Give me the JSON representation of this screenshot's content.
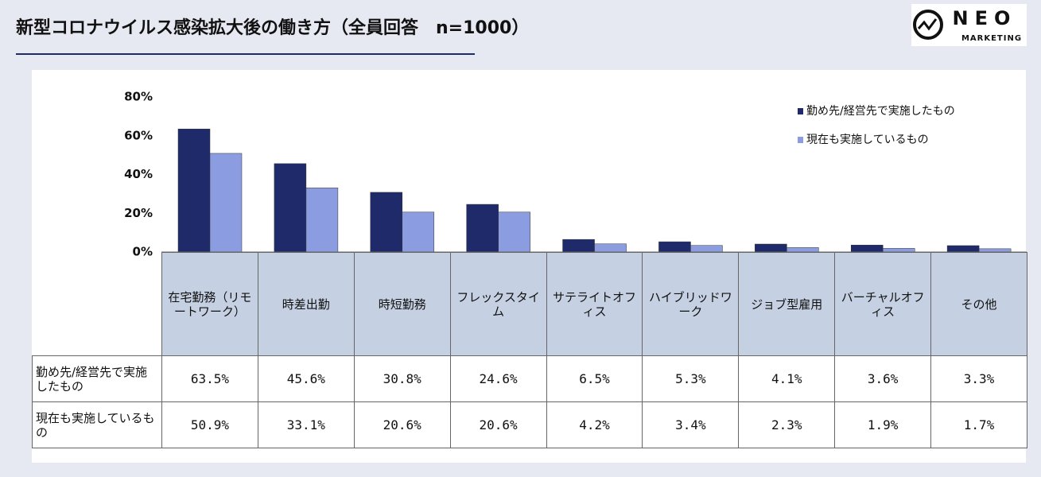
{
  "page_title": "新型コロナウイルス感染拡大後の働き方（全員回答　n=1000）",
  "logo": {
    "name": "NEO",
    "tagline": "MARKETING"
  },
  "chart_data": {
    "type": "bar",
    "categories": [
      "在宅勤務（リモートワーク）",
      "時差出勤",
      "時短勤務",
      "フレックスタイム",
      "サテライトオフィス",
      "ハイブリッドワーク",
      "ジョブ型雇用",
      "バーチャルオフィス",
      "その他"
    ],
    "series": [
      {
        "name": "勤め先/経営先で実施したもの",
        "color": "#1f2a6b",
        "values": [
          63.5,
          45.6,
          30.8,
          24.6,
          6.5,
          5.3,
          4.1,
          3.6,
          3.3
        ],
        "value_labels": [
          "63.5%",
          "45.6%",
          "30.8%",
          "24.6%",
          "6.5%",
          "5.3%",
          "4.1%",
          "3.6%",
          "3.3%"
        ]
      },
      {
        "name": "現在も実施しているもの",
        "color": "#8b9de0",
        "values": [
          50.9,
          33.1,
          20.6,
          20.6,
          4.2,
          3.4,
          2.3,
          1.9,
          1.7
        ],
        "value_labels": [
          "50.9%",
          "33.1%",
          "20.6%",
          "20.6%",
          "4.2%",
          "3.4%",
          "2.3%",
          "1.9%",
          "1.7%"
        ]
      }
    ],
    "ylim": [
      0,
      80
    ],
    "yticks": [
      {
        "value": 0,
        "label": "0%"
      },
      {
        "value": 20,
        "label": "20%"
      },
      {
        "value": 40,
        "label": "40%"
      },
      {
        "value": 60,
        "label": "60%"
      },
      {
        "value": 80,
        "label": "80%"
      }
    ],
    "legend": "top-right"
  }
}
